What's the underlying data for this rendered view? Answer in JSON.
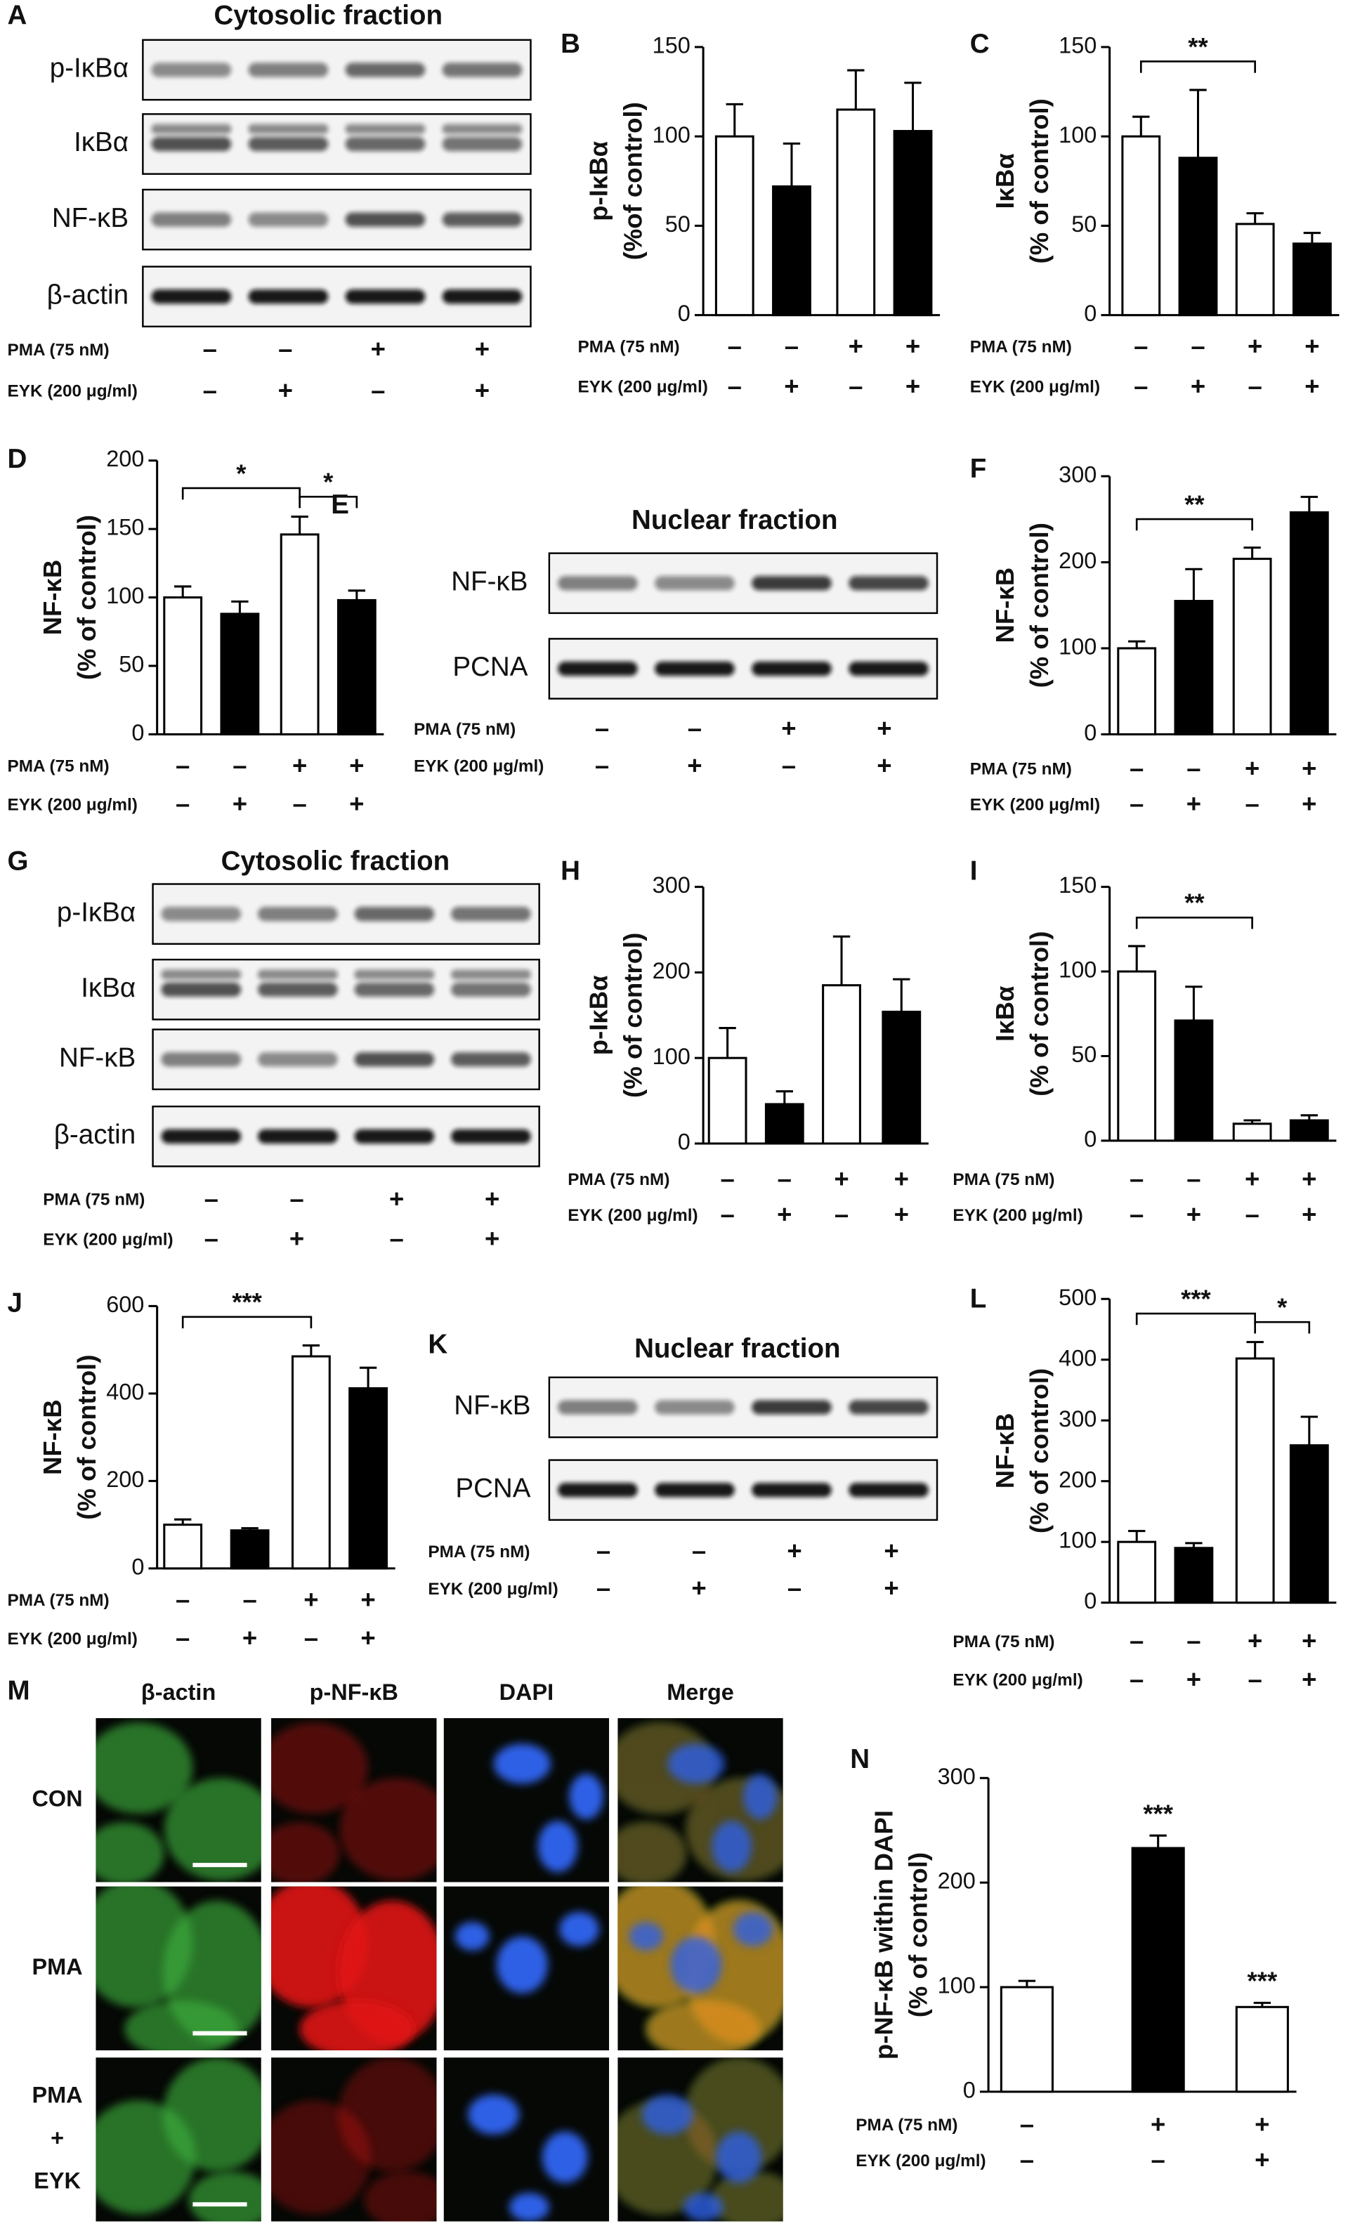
{
  "chart_data": [
    {
      "type": "bar",
      "panel": "B",
      "ylabel": [
        "p-IκBα",
        "(%of control)"
      ],
      "values": [
        100,
        72,
        115,
        103
      ],
      "errors": [
        18,
        24,
        22,
        27
      ],
      "colors": [
        "#ffffff",
        "#000000",
        "#ffffff",
        "#000000"
      ],
      "ylim": [
        0,
        150
      ],
      "yticks": [
        0,
        50,
        100,
        150
      ],
      "conditions": [
        {
          "label": "PMA (75 nM)",
          "signs": [
            "–",
            "–",
            "+",
            "+"
          ]
        },
        {
          "label": "EYK (200 μg/ml)",
          "signs": [
            "–",
            "+",
            "–",
            "+"
          ]
        }
      ],
      "significance": []
    },
    {
      "type": "bar",
      "panel": "C",
      "ylabel": [
        "IκBα",
        "(% of control)"
      ],
      "values": [
        100,
        88,
        51,
        40
      ],
      "errors": [
        11,
        38,
        6,
        6
      ],
      "colors": [
        "#ffffff",
        "#000000",
        "#ffffff",
        "#000000"
      ],
      "ylim": [
        0,
        150
      ],
      "yticks": [
        0,
        50,
        100,
        150
      ],
      "conditions": [
        {
          "label": "PMA (75 nM)",
          "signs": [
            "–",
            "–",
            "+",
            "+"
          ]
        },
        {
          "label": "EYK (200 μg/ml)",
          "signs": [
            "–",
            "+",
            "–",
            "+"
          ]
        }
      ],
      "significance": [
        {
          "bars": [
            0,
            2
          ],
          "label": "**"
        }
      ]
    },
    {
      "type": "bar",
      "panel": "D",
      "ylabel": [
        "NF-κB",
        "(% of control)"
      ],
      "values": [
        100,
        88,
        146,
        98
      ],
      "errors": [
        8,
        9,
        13,
        7
      ],
      "colors": [
        "#ffffff",
        "#000000",
        "#ffffff",
        "#000000"
      ],
      "ylim": [
        0,
        200
      ],
      "yticks": [
        0,
        50,
        100,
        150,
        200
      ],
      "conditions": [
        {
          "label": "PMA (75 nM)",
          "signs": [
            "–",
            "–",
            "+",
            "+"
          ]
        },
        {
          "label": "EYK (200 μg/ml)",
          "signs": [
            "–",
            "+",
            "–",
            "+"
          ]
        }
      ],
      "significance": [
        {
          "bars": [
            0,
            2
          ],
          "label": "*"
        },
        {
          "bars": [
            2,
            3
          ],
          "label": "*"
        }
      ]
    },
    {
      "type": "bar",
      "panel": "F",
      "ylabel": [
        "NF-κB",
        "(% of control)"
      ],
      "values": [
        100,
        155,
        204,
        258
      ],
      "errors": [
        8,
        37,
        13,
        18
      ],
      "colors": [
        "#ffffff",
        "#000000",
        "#ffffff",
        "#000000"
      ],
      "ylim": [
        0,
        300
      ],
      "yticks": [
        0,
        100,
        200,
        300
      ],
      "conditions": [
        {
          "label": "PMA (75 nM)",
          "signs": [
            "–",
            "–",
            "+",
            "+"
          ]
        },
        {
          "label": "EYK (200 μg/ml)",
          "signs": [
            "–",
            "+",
            "–",
            "+"
          ]
        }
      ],
      "significance": [
        {
          "bars": [
            0,
            2
          ],
          "label": "**"
        }
      ]
    },
    {
      "type": "bar",
      "panel": "H",
      "ylabel": [
        "p-IκBα",
        "(% of control)"
      ],
      "values": [
        100,
        46,
        185,
        154
      ],
      "errors": [
        35,
        15,
        57,
        38
      ],
      "colors": [
        "#ffffff",
        "#000000",
        "#ffffff",
        "#000000"
      ],
      "ylim": [
        0,
        300
      ],
      "yticks": [
        0,
        100,
        200,
        300
      ],
      "conditions": [
        {
          "label": "PMA (75 nM)",
          "signs": [
            "–",
            "–",
            "+",
            "+"
          ]
        },
        {
          "label": "EYK (200 μg/ml)",
          "signs": [
            "–",
            "+",
            "–",
            "+"
          ]
        }
      ],
      "significance": []
    },
    {
      "type": "bar",
      "panel": "I",
      "ylabel": [
        "IκBα",
        "(% of control)"
      ],
      "values": [
        100,
        71,
        10,
        12
      ],
      "errors": [
        15,
        20,
        2,
        3
      ],
      "colors": [
        "#ffffff",
        "#000000",
        "#ffffff",
        "#000000"
      ],
      "ylim": [
        0,
        150
      ],
      "yticks": [
        0,
        50,
        100,
        150
      ],
      "conditions": [
        {
          "label": "PMA (75 nM)",
          "signs": [
            "–",
            "–",
            "+",
            "+"
          ]
        },
        {
          "label": "EYK (200 μg/ml)",
          "signs": [
            "–",
            "+",
            "–",
            "+"
          ]
        }
      ],
      "significance": [
        {
          "bars": [
            0,
            2
          ],
          "label": "**"
        }
      ]
    },
    {
      "type": "bar",
      "panel": "J",
      "ylabel": [
        "NF-κB",
        "(% of control)"
      ],
      "values": [
        100,
        87,
        485,
        412
      ],
      "errors": [
        12,
        5,
        25,
        47
      ],
      "colors": [
        "#ffffff",
        "#000000",
        "#ffffff",
        "#000000"
      ],
      "ylim": [
        0,
        600
      ],
      "yticks": [
        0,
        200,
        400,
        600
      ],
      "conditions": [
        {
          "label": "PMA (75 nM)",
          "signs": [
            "–",
            "–",
            "+",
            "+"
          ]
        },
        {
          "label": "EYK (200 μg/ml)",
          "signs": [
            "–",
            "+",
            "–",
            "+"
          ]
        }
      ],
      "significance": [
        {
          "bars": [
            0,
            2
          ],
          "label": "***"
        }
      ]
    },
    {
      "type": "bar",
      "panel": "L",
      "ylabel": [
        "NF-κB",
        "(% of control)"
      ],
      "values": [
        100,
        90,
        402,
        259
      ],
      "errors": [
        18,
        8,
        27,
        47
      ],
      "colors": [
        "#ffffff",
        "#000000",
        "#ffffff",
        "#000000"
      ],
      "ylim": [
        0,
        500
      ],
      "yticks": [
        0,
        100,
        200,
        300,
        400,
        500
      ],
      "conditions": [
        {
          "label": "PMA (75 nM)",
          "signs": [
            "–",
            "–",
            "+",
            "+"
          ]
        },
        {
          "label": "EYK (200 μg/ml)",
          "signs": [
            "–",
            "+",
            "–",
            "+"
          ]
        }
      ],
      "significance": [
        {
          "bars": [
            0,
            2
          ],
          "label": "***"
        },
        {
          "bars": [
            2,
            3
          ],
          "label": "*"
        }
      ]
    },
    {
      "type": "bar",
      "panel": "N",
      "ylabel": [
        "p-NF-κB within DAPI",
        "(% of control)"
      ],
      "values": [
        100,
        233,
        81
      ],
      "errors": [
        6,
        12,
        4
      ],
      "colors": [
        "#ffffff",
        "#000000",
        "#ffffff"
      ],
      "ylim": [
        0,
        300
      ],
      "yticks": [
        0,
        100,
        200,
        300
      ],
      "conditions": [
        {
          "label": "PMA (75 nM)",
          "signs": [
            "–",
            "+",
            "+"
          ]
        },
        {
          "label": "EYK (200 μg/ml)",
          "signs": [
            "–",
            "–",
            "+"
          ]
        }
      ],
      "significance": [
        {
          "bars": [
            1
          ],
          "label": "***"
        },
        {
          "bars": [
            2
          ],
          "label": "***"
        }
      ]
    }
  ],
  "blots": [
    {
      "panel": "A",
      "title": "Cytosolic fraction",
      "rows": [
        "p-IκBα",
        "IκBα",
        "NF-κB",
        "β-actin"
      ],
      "conditions": [
        {
          "label": "PMA (75 nM)",
          "signs": [
            "–",
            "–",
            "+",
            "+"
          ]
        },
        {
          "label": "EYK (200 μg/ml)",
          "signs": [
            "–",
            "+",
            "–",
            "+"
          ]
        }
      ]
    },
    {
      "panel": "E",
      "title": "Nuclear fraction",
      "rows": [
        "NF-κB",
        "PCNA"
      ],
      "conditions": [
        {
          "label": "PMA (75 nM)",
          "signs": [
            "–",
            "–",
            "+",
            "+"
          ]
        },
        {
          "label": "EYK (200 μg/ml)",
          "signs": [
            "–",
            "+",
            "–",
            "+"
          ]
        }
      ]
    },
    {
      "panel": "G",
      "title": "Cytosolic fraction",
      "rows": [
        "p-IκBα",
        "IκBα",
        "NF-κB",
        "β-actin"
      ],
      "conditions": [
        {
          "label": "PMA (75 nM)",
          "signs": [
            "–",
            "–",
            "+",
            "+"
          ]
        },
        {
          "label": "EYK (200  μg/ml)",
          "signs": [
            "–",
            "+",
            "–",
            "+"
          ]
        }
      ]
    },
    {
      "panel": "K",
      "title": "Nuclear fraction",
      "rows": [
        "NF-κB",
        "PCNA"
      ],
      "conditions": [
        {
          "label": "PMA (75 nM)",
          "signs": [
            "–",
            "–",
            "+",
            "+"
          ]
        },
        {
          "label": "EYK (200 μg/ml)",
          "signs": [
            "–",
            "+",
            "–",
            "+"
          ]
        }
      ]
    }
  ],
  "microscopy": {
    "panel": "M",
    "columns": [
      "β-actin",
      "p-NF-κB",
      "DAPI",
      "Merge"
    ],
    "rows": [
      [
        "CON"
      ],
      [
        "PMA"
      ],
      [
        "PMA",
        "+",
        "EYK"
      ]
    ]
  }
}
